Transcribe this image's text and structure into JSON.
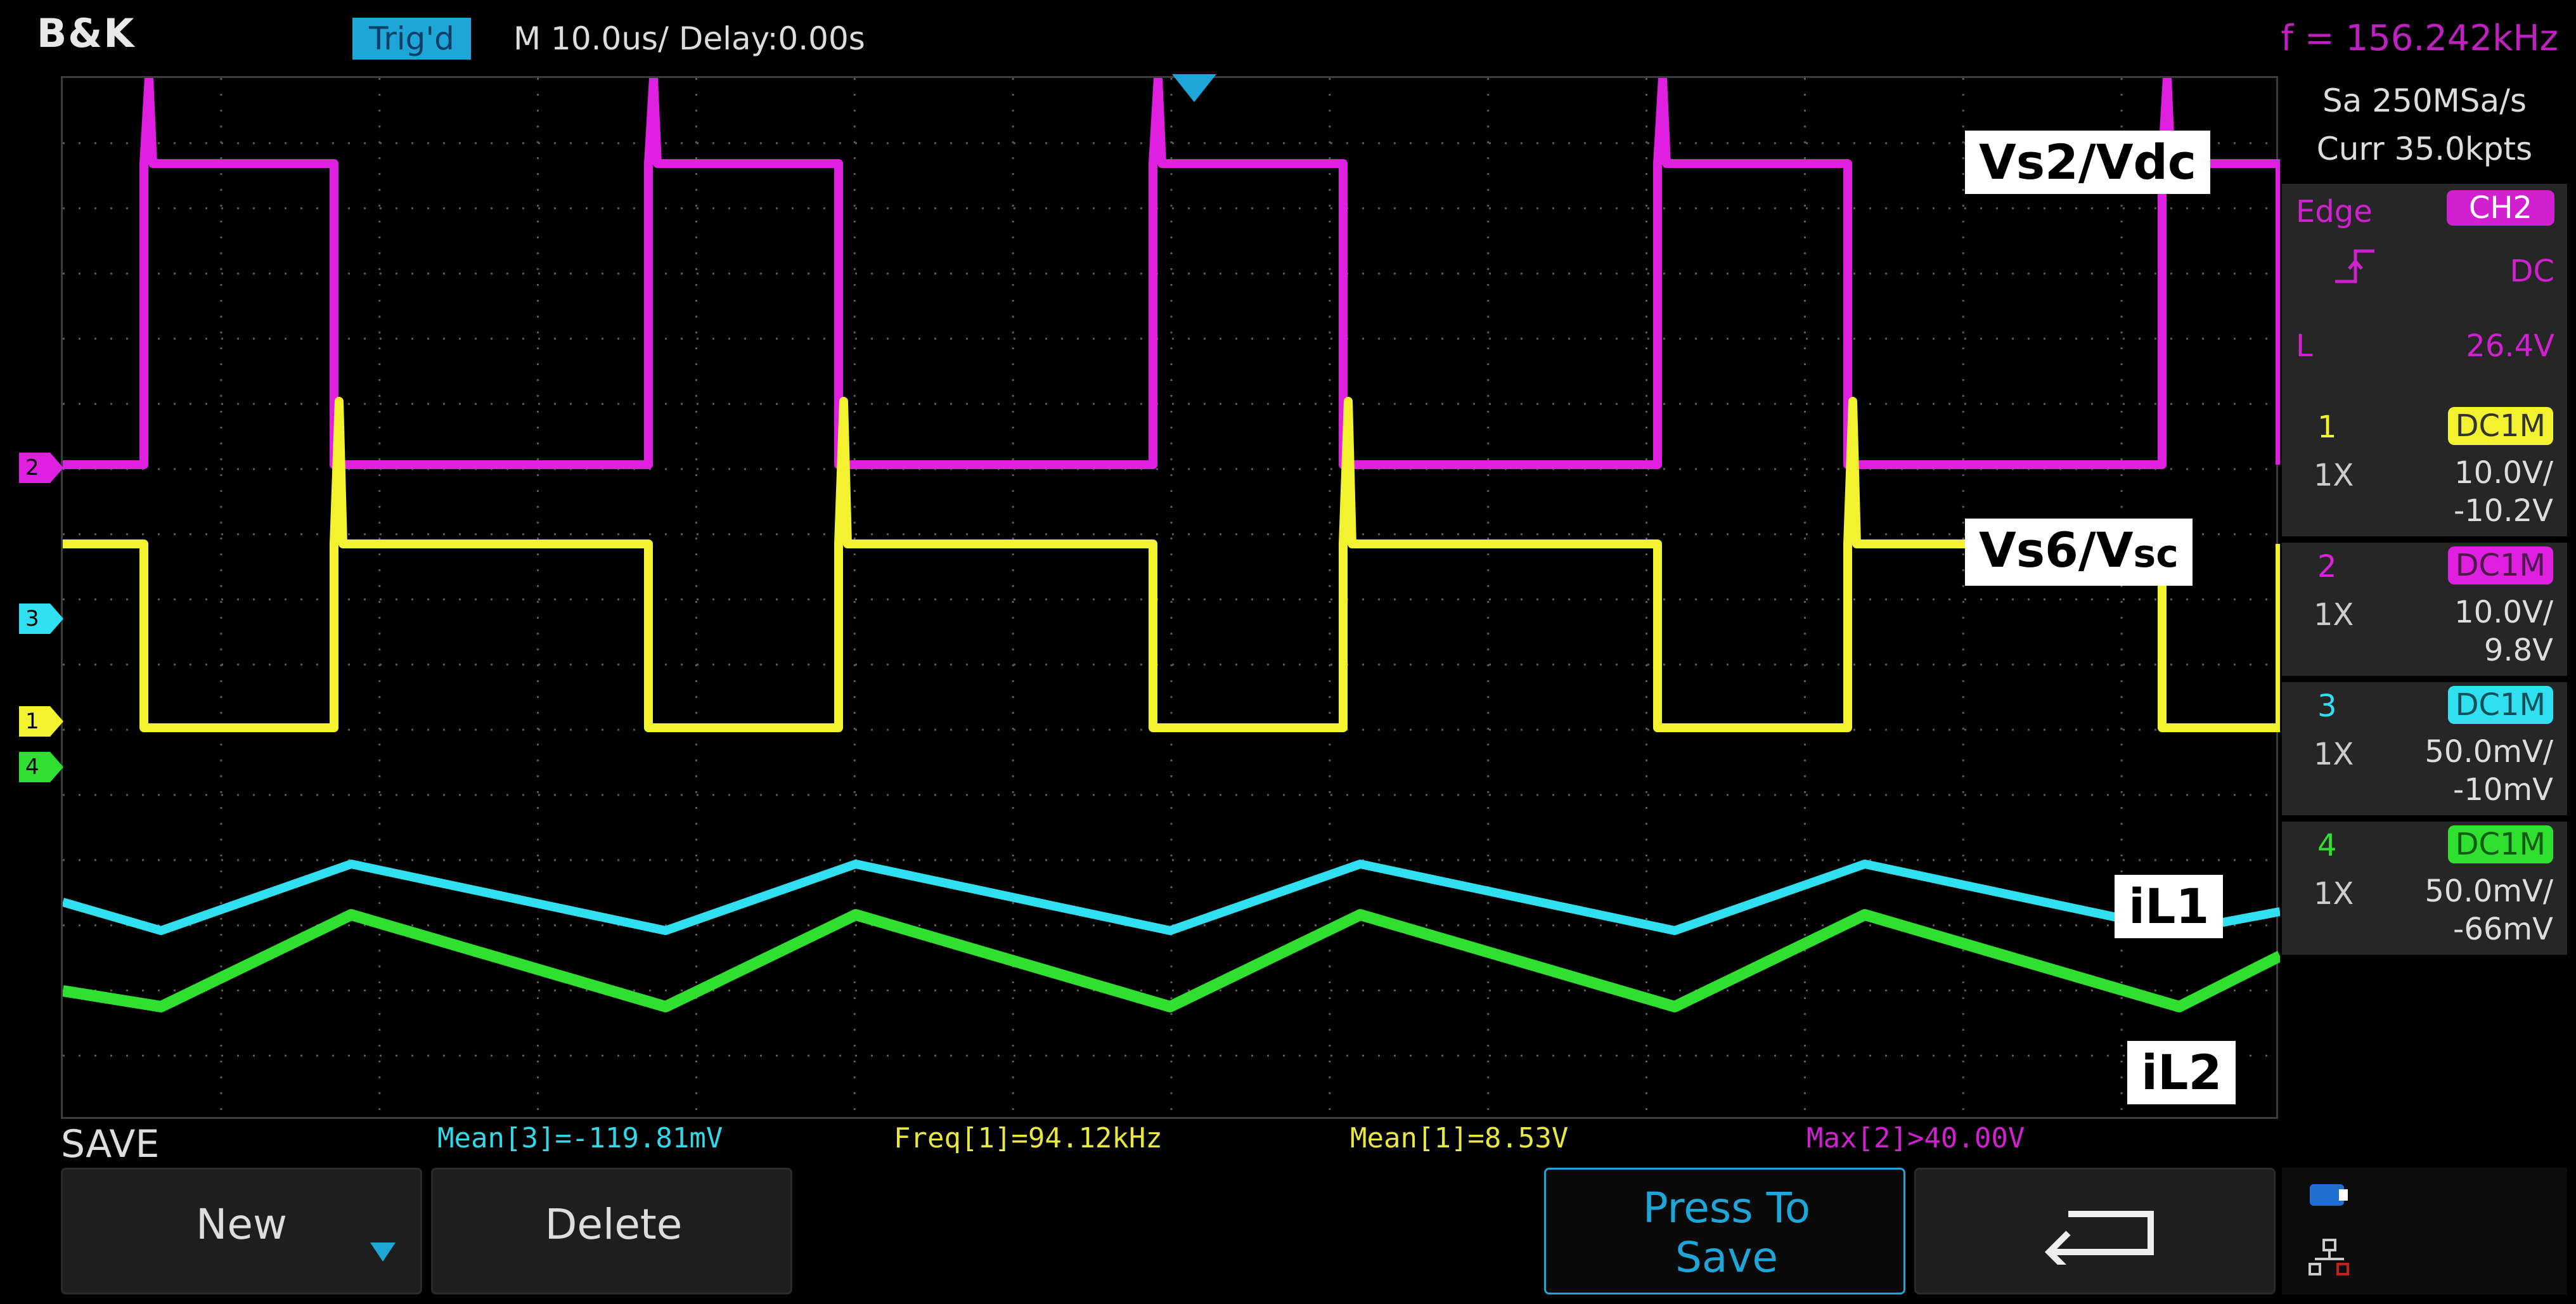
{
  "header": {
    "brand": "B&K",
    "trigger_status": "Trig'd",
    "timebase": "M 10.0us/  Delay:0.00s",
    "frequency": "f = 156.242kHz"
  },
  "acquisition": {
    "sample_rate": "Sa 250MSa/s",
    "memory_depth": "Curr 35.0kpts"
  },
  "trigger": {
    "type": "Edge",
    "source": "CH2",
    "slope_icon": "rising-edge-icon",
    "coupling": "DC",
    "level_label": "L",
    "level": "26.4V"
  },
  "channels": [
    {
      "number": "1",
      "coupling": "DC1M",
      "probe": "1X",
      "scale": "10.0V/",
      "offset": "-10.2V",
      "color": "#f2f230"
    },
    {
      "number": "2",
      "coupling": "DC1M",
      "probe": "1X",
      "scale": "10.0V/",
      "offset": "9.8V",
      "color": "#e020e0"
    },
    {
      "number": "3",
      "coupling": "DC1M",
      "probe": "1X",
      "scale": "50.0mV/",
      "offset": "-10mV",
      "color": "#30e0f0"
    },
    {
      "number": "4",
      "coupling": "DC1M",
      "probe": "1X",
      "scale": "50.0mV/",
      "offset": "-66mV",
      "color": "#30e030"
    }
  ],
  "labels": {
    "vs2": "Vs2/Vdc",
    "vs6_main": "Vs6/V",
    "vs6_sub": "sc",
    "il1": "iL1",
    "il2": "iL2"
  },
  "measurements": [
    {
      "text": "Mean[3]=-119.81mV",
      "color": "#30d8e8"
    },
    {
      "text": "Freq[1]=94.12kHz",
      "color": "#e8e840"
    },
    {
      "text": "Mean[1]=8.53V",
      "color": "#e8e840"
    },
    {
      "text": "Max[2]>40.00V",
      "color": "#d020d0"
    }
  ],
  "menu": {
    "title": "SAVE",
    "new_label": "New",
    "delete_label": "Delete",
    "press_to_save_line1": "Press To",
    "press_to_save_line2": "Save"
  }
}
